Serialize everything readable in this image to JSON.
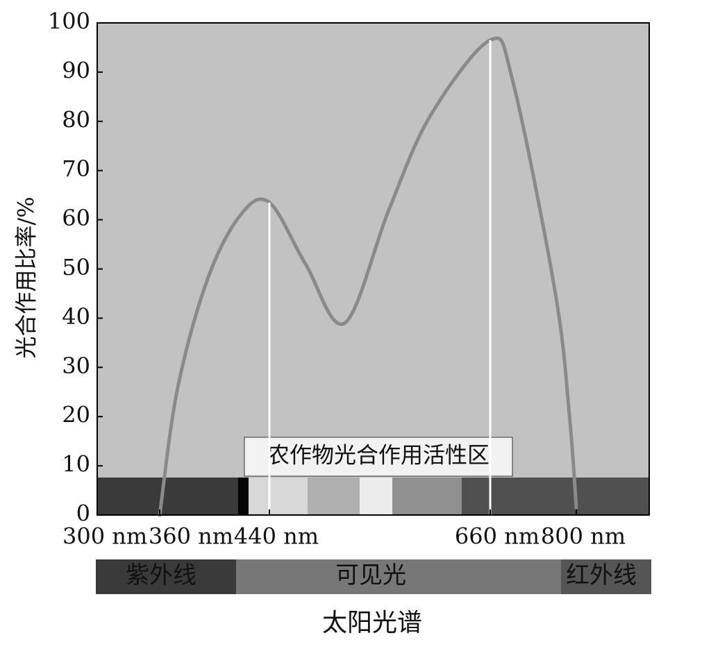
{
  "chart_data": {
    "type": "line",
    "y_label": "光合作用比率/%",
    "x_label": "太阳光谱",
    "band_label": "农作物光合作用活性区",
    "regions": [
      "紫外线",
      "可见光",
      "红外线"
    ],
    "x": [
      360,
      373,
      395,
      419,
      440,
      476,
      515,
      559,
      600,
      660,
      697,
      766,
      789,
      800
    ],
    "values": [
      0,
      25.7,
      48,
      61,
      63.5,
      51,
      39,
      62,
      81,
      96.5,
      88,
      45,
      20,
      1.5
    ],
    "color": "#8a8a8a",
    "xlim": [
      300,
      920
    ],
    "xticks": [
      {
        "value": 300,
        "label": "300 nm"
      },
      {
        "value": 360,
        "label": "360 nm"
      },
      {
        "value": 440,
        "label": "440 nm"
      },
      {
        "value": 660,
        "label": "660 nm"
      },
      {
        "value": 800,
        "label": "800 nm"
      }
    ],
    "ylim": [
      0,
      100
    ],
    "yticks": [
      0,
      10,
      20,
      30,
      40,
      50,
      60,
      70,
      80,
      90,
      100
    ]
  }
}
